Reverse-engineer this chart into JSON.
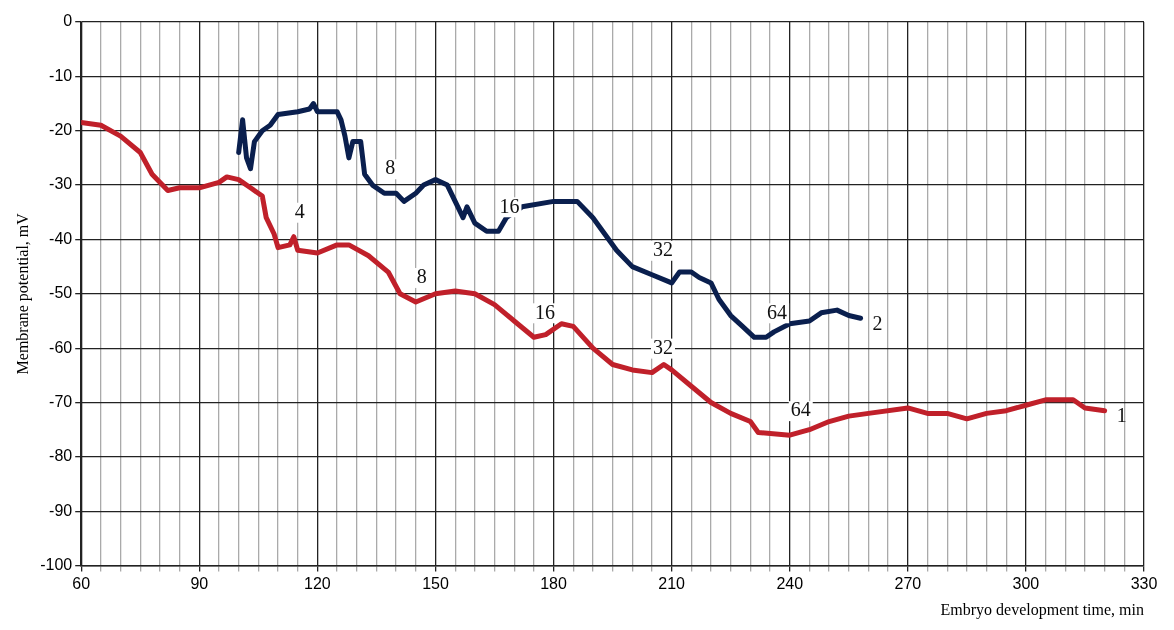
{
  "chart_data": {
    "type": "line",
    "xlabel": "Embryo development time, min",
    "ylabel": "Membrane potential, mV",
    "xlim": [
      60,
      330
    ],
    "ylim": [
      -100,
      0
    ],
    "xticks": [
      60,
      {
        "value": 65,
        "label": null
      },
      {
        "value": 70,
        "label": null
      },
      {
        "value": 75,
        "label": null
      },
      {
        "value": 80,
        "label": null
      },
      {
        "value": 85,
        "label": null
      },
      90,
      {
        "value": 95,
        "label": null
      },
      {
        "value": 100,
        "label": null
      },
      {
        "value": 105,
        "label": null
      },
      {
        "value": 110,
        "label": null
      },
      {
        "value": 115,
        "label": null
      },
      120,
      {
        "value": 125,
        "label": null
      },
      {
        "value": 130,
        "label": null
      },
      {
        "value": 135,
        "label": null
      },
      {
        "value": 140,
        "label": null
      },
      {
        "value": 145,
        "label": null
      },
      150,
      {
        "value": 155,
        "label": null
      },
      {
        "value": 160,
        "label": null
      },
      {
        "value": 165,
        "label": null
      },
      {
        "value": 170,
        "label": null
      },
      {
        "value": 175,
        "label": null
      },
      180,
      {
        "value": 185,
        "label": null
      },
      {
        "value": 190,
        "label": null
      },
      {
        "value": 195,
        "label": null
      },
      {
        "value": 200,
        "label": null
      },
      {
        "value": 205,
        "label": null
      },
      210,
      {
        "value": 215,
        "label": null
      },
      {
        "value": 220,
        "label": null
      },
      {
        "value": 225,
        "label": null
      },
      {
        "value": 230,
        "label": null
      },
      {
        "value": 235,
        "label": null
      },
      240,
      {
        "value": 245,
        "label": null
      },
      {
        "value": 250,
        "label": null
      },
      {
        "value": 255,
        "label": null
      },
      {
        "value": 260,
        "label": null
      },
      {
        "value": 265,
        "label": null
      },
      270,
      {
        "value": 275,
        "label": null
      },
      {
        "value": 280,
        "label": null
      },
      {
        "value": 285,
        "label": null
      },
      {
        "value": 290,
        "label": null
      },
      {
        "value": 295,
        "label": null
      },
      300,
      {
        "value": 305,
        "label": null
      },
      {
        "value": 310,
        "label": null
      },
      {
        "value": 315,
        "label": null
      },
      {
        "value": 320,
        "label": null
      },
      {
        "value": 325,
        "label": null
      },
      330
    ],
    "yticks": [
      0,
      -10,
      -20,
      -30,
      -40,
      -50,
      -60,
      -70,
      -80,
      -90,
      -100
    ],
    "grid": true,
    "legend": false,
    "line_style": "solid",
    "series": [
      {
        "color": "#c0202a",
        "x": [
          60,
          65,
          70,
          75,
          78,
          82,
          85,
          90,
          95,
          97,
          100,
          103,
          106,
          107,
          109,
          110,
          113,
          114,
          115,
          120,
          125,
          128,
          133,
          138,
          141,
          145,
          150,
          155,
          160,
          165,
          170,
          175,
          178,
          182,
          185,
          190,
          195,
          200,
          205,
          208,
          210,
          215,
          220,
          225,
          230,
          232,
          240,
          245,
          250,
          255,
          260,
          270,
          275,
          280,
          285,
          290,
          295,
          300,
          305,
          312,
          315,
          320
        ],
        "values": [
          -18.5,
          -19,
          -21,
          -24,
          -28,
          -31,
          -30.5,
          -30.5,
          -29.5,
          -28.5,
          -29,
          -30.5,
          -32,
          -36,
          -39,
          -41.5,
          -41,
          -39.5,
          -42,
          -42.5,
          -41,
          -41,
          -43,
          -46,
          -50,
          -51.5,
          -50,
          -49.5,
          -50,
          -52,
          -55,
          -58,
          -57.5,
          -55.5,
          -56,
          -60,
          -63,
          -64,
          -64.5,
          -63,
          -64,
          -67,
          -70,
          -72,
          -73.5,
          -75.5,
          -76,
          -75,
          -73.5,
          -72.5,
          -72,
          -71,
          -72,
          -72,
          -73,
          -72,
          -71.5,
          -70.5,
          -69.5,
          -69.5,
          -71,
          -71.5
        ]
      },
      {
        "color": "#0a1f4e",
        "x": [
          100,
          101,
          102,
          103,
          104,
          106,
          108,
          110,
          115,
          118,
          119,
          120,
          125,
          126,
          127,
          128,
          129,
          131,
          132,
          134,
          137,
          140,
          142,
          145,
          147,
          150,
          153,
          155,
          157,
          158,
          160,
          163,
          166,
          168,
          172,
          180,
          186,
          190,
          193,
          196,
          200,
          205,
          210,
          212,
          215,
          217,
          220,
          222,
          225,
          228,
          231,
          234,
          236,
          240,
          245,
          248,
          252,
          255,
          258
        ],
        "values": [
          -24,
          -18,
          -25,
          -27,
          -22,
          -20,
          -19,
          -17,
          -16.5,
          -16,
          -15,
          -16.5,
          -16.5,
          -18,
          -21,
          -25,
          -22,
          -22,
          -28,
          -30,
          -31.5,
          -31.5,
          -33,
          -31.5,
          -30,
          -29,
          -30,
          -33,
          -36,
          -34,
          -37,
          -38.5,
          -38.5,
          -36,
          -34,
          -33,
          -33,
          -36,
          -39,
          -42,
          -45,
          -46.5,
          -48,
          -46,
          -46,
          -47,
          -48,
          -51,
          -54,
          -56,
          -58,
          -58,
          -57,
          -55.5,
          -55,
          -53.5,
          -53,
          -54,
          -54.5
        ]
      }
    ],
    "annotations": [
      {
        "text": "4",
        "x": 114,
        "y": -39.5
      },
      {
        "text": "8",
        "x": 145,
        "y": -51.5
      },
      {
        "text": "16",
        "x": 175,
        "y": -58
      },
      {
        "text": "32",
        "x": 205,
        "y": -64.5
      },
      {
        "text": "64",
        "x": 240,
        "y": -76
      },
      {
        "text": "1",
        "x": 320,
        "y": -71.5
      },
      {
        "text": "8",
        "x": 137,
        "y": -31.5
      },
      {
        "text": "16",
        "x": 166,
        "y": -38.5
      },
      {
        "text": "32",
        "x": 205,
        "y": -46.5
      },
      {
        "text": "64",
        "x": 234,
        "y": -58
      },
      {
        "text": "2",
        "x": 258,
        "y": -54.5
      }
    ]
  }
}
